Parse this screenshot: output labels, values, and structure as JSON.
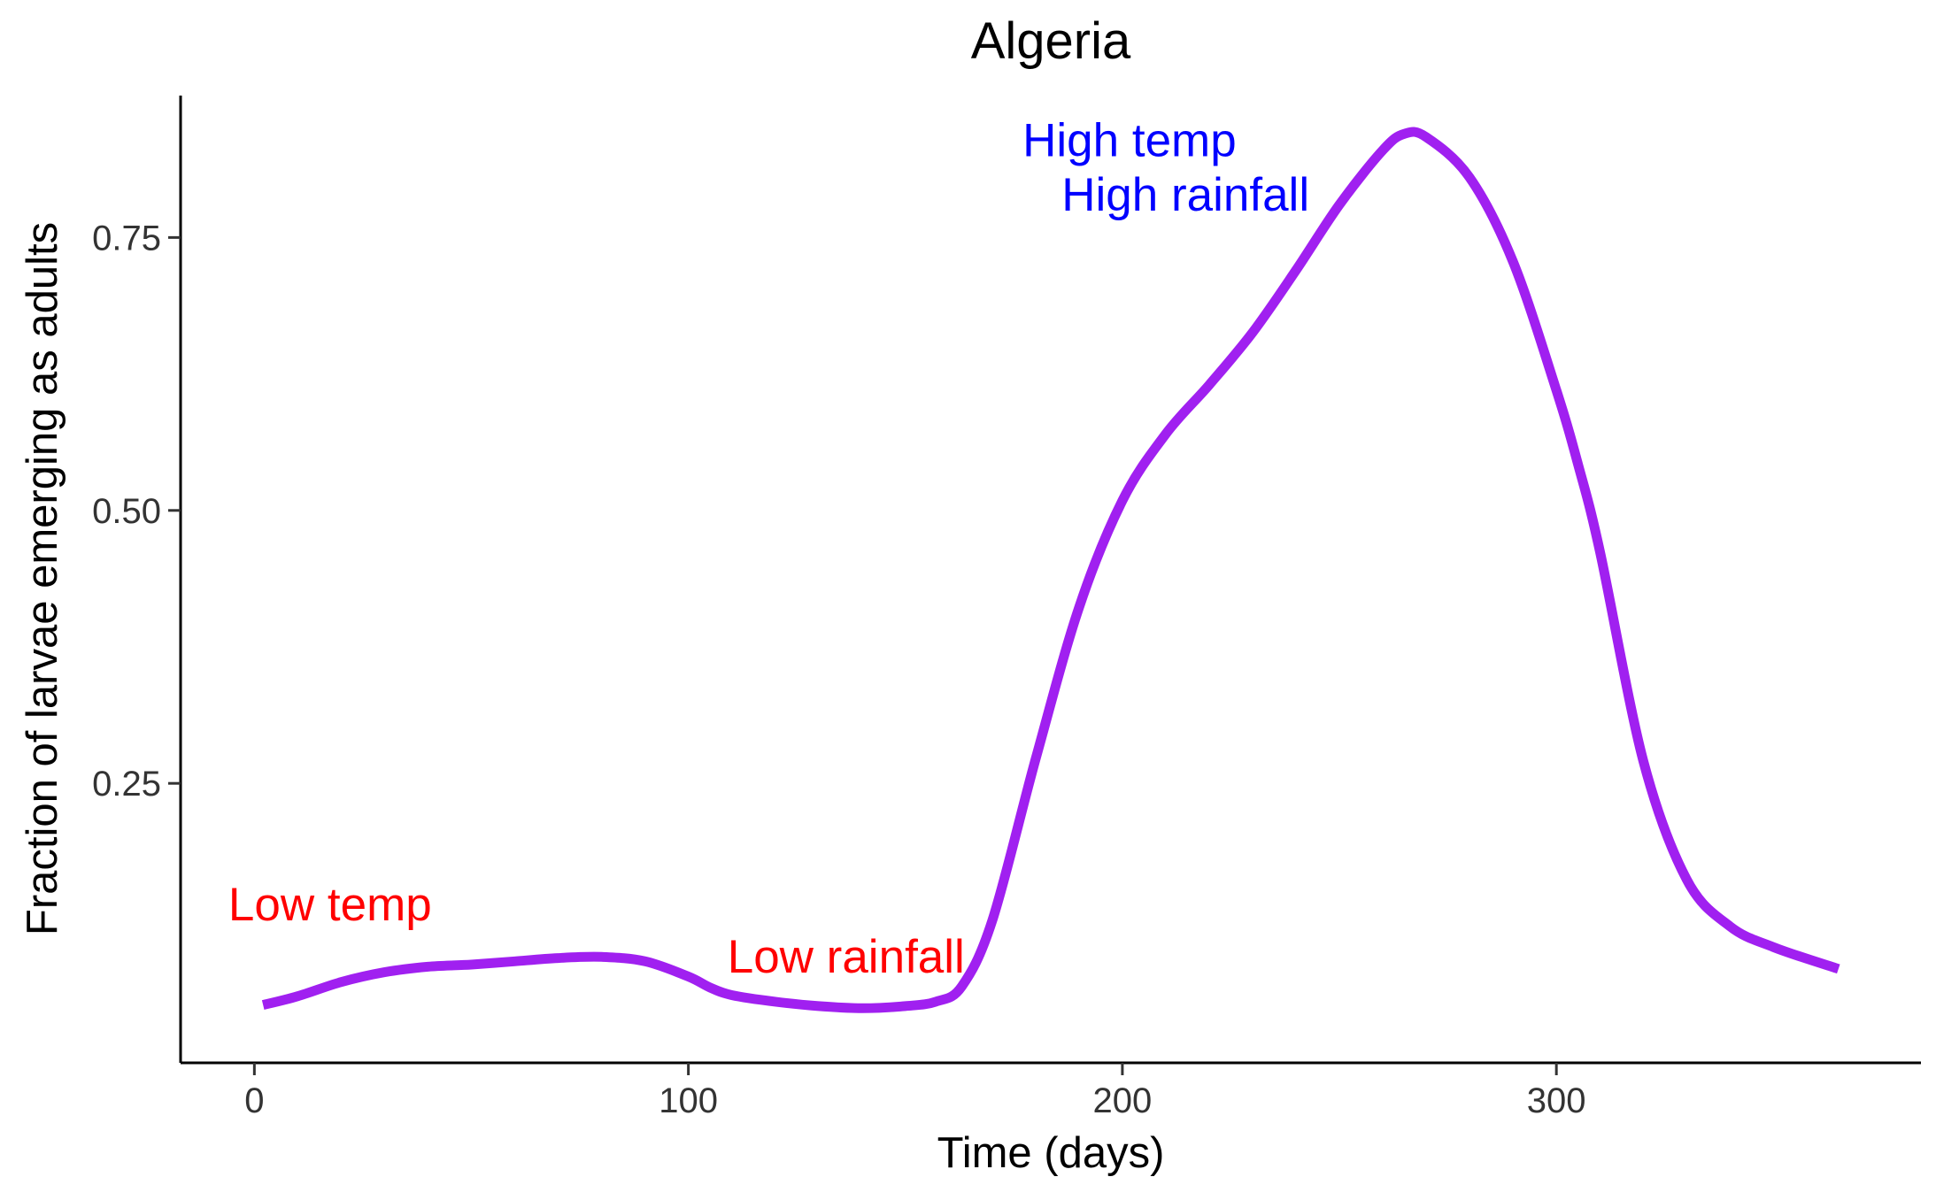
{
  "chart_data": {
    "type": "line",
    "title": "Algeria",
    "xlabel": "Time (days)",
    "ylabel": "Fraction of larvae emerging as adults",
    "xlim": [
      -17,
      384
    ],
    "ylim": [
      -0.006,
      0.88
    ],
    "xticks": [
      0,
      100,
      200,
      300
    ],
    "xtick_labels": [
      "0",
      "100",
      "200",
      "300"
    ],
    "yticks": [
      0.25,
      0.5,
      0.75
    ],
    "ytick_labels": [
      "0.25",
      "0.50",
      "0.75"
    ],
    "grid": false,
    "legend": "none",
    "series": [
      {
        "color": "#A020F0",
        "x": [
          2,
          10,
          20,
          30,
          40,
          50,
          60,
          70,
          80,
          90,
          100,
          105,
          110,
          120,
          130,
          140,
          150,
          157,
          163,
          170,
          180,
          190,
          200,
          210,
          220,
          230,
          240,
          250,
          260,
          265,
          270,
          280,
          290,
          300,
          305,
          310,
          320,
          330,
          340,
          350,
          365
        ],
        "y": [
          0.047,
          0.055,
          0.068,
          0.077,
          0.082,
          0.084,
          0.087,
          0.09,
          0.091,
          0.087,
          0.073,
          0.063,
          0.056,
          0.05,
          0.046,
          0.044,
          0.046,
          0.05,
          0.064,
          0.124,
          0.272,
          0.411,
          0.509,
          0.57,
          0.615,
          0.663,
          0.72,
          0.78,
          0.83,
          0.845,
          0.842,
          0.805,
          0.728,
          0.61,
          0.542,
          0.463,
          0.271,
          0.162,
          0.119,
          0.1,
          0.08
        ]
      }
    ],
    "annotations": [
      {
        "text": "Low temp",
        "x": -6,
        "y": 0.14,
        "color": "#FF0000"
      },
      {
        "text": "Low rainfall",
        "x": 109,
        "y": 0.092,
        "color": "#FF0000"
      },
      {
        "text": "High temp",
        "x": 177,
        "y": 0.84,
        "color": "#0000FF"
      },
      {
        "text": "High rainfall",
        "x": 186,
        "y": 0.79,
        "color": "#0000FF"
      }
    ]
  }
}
